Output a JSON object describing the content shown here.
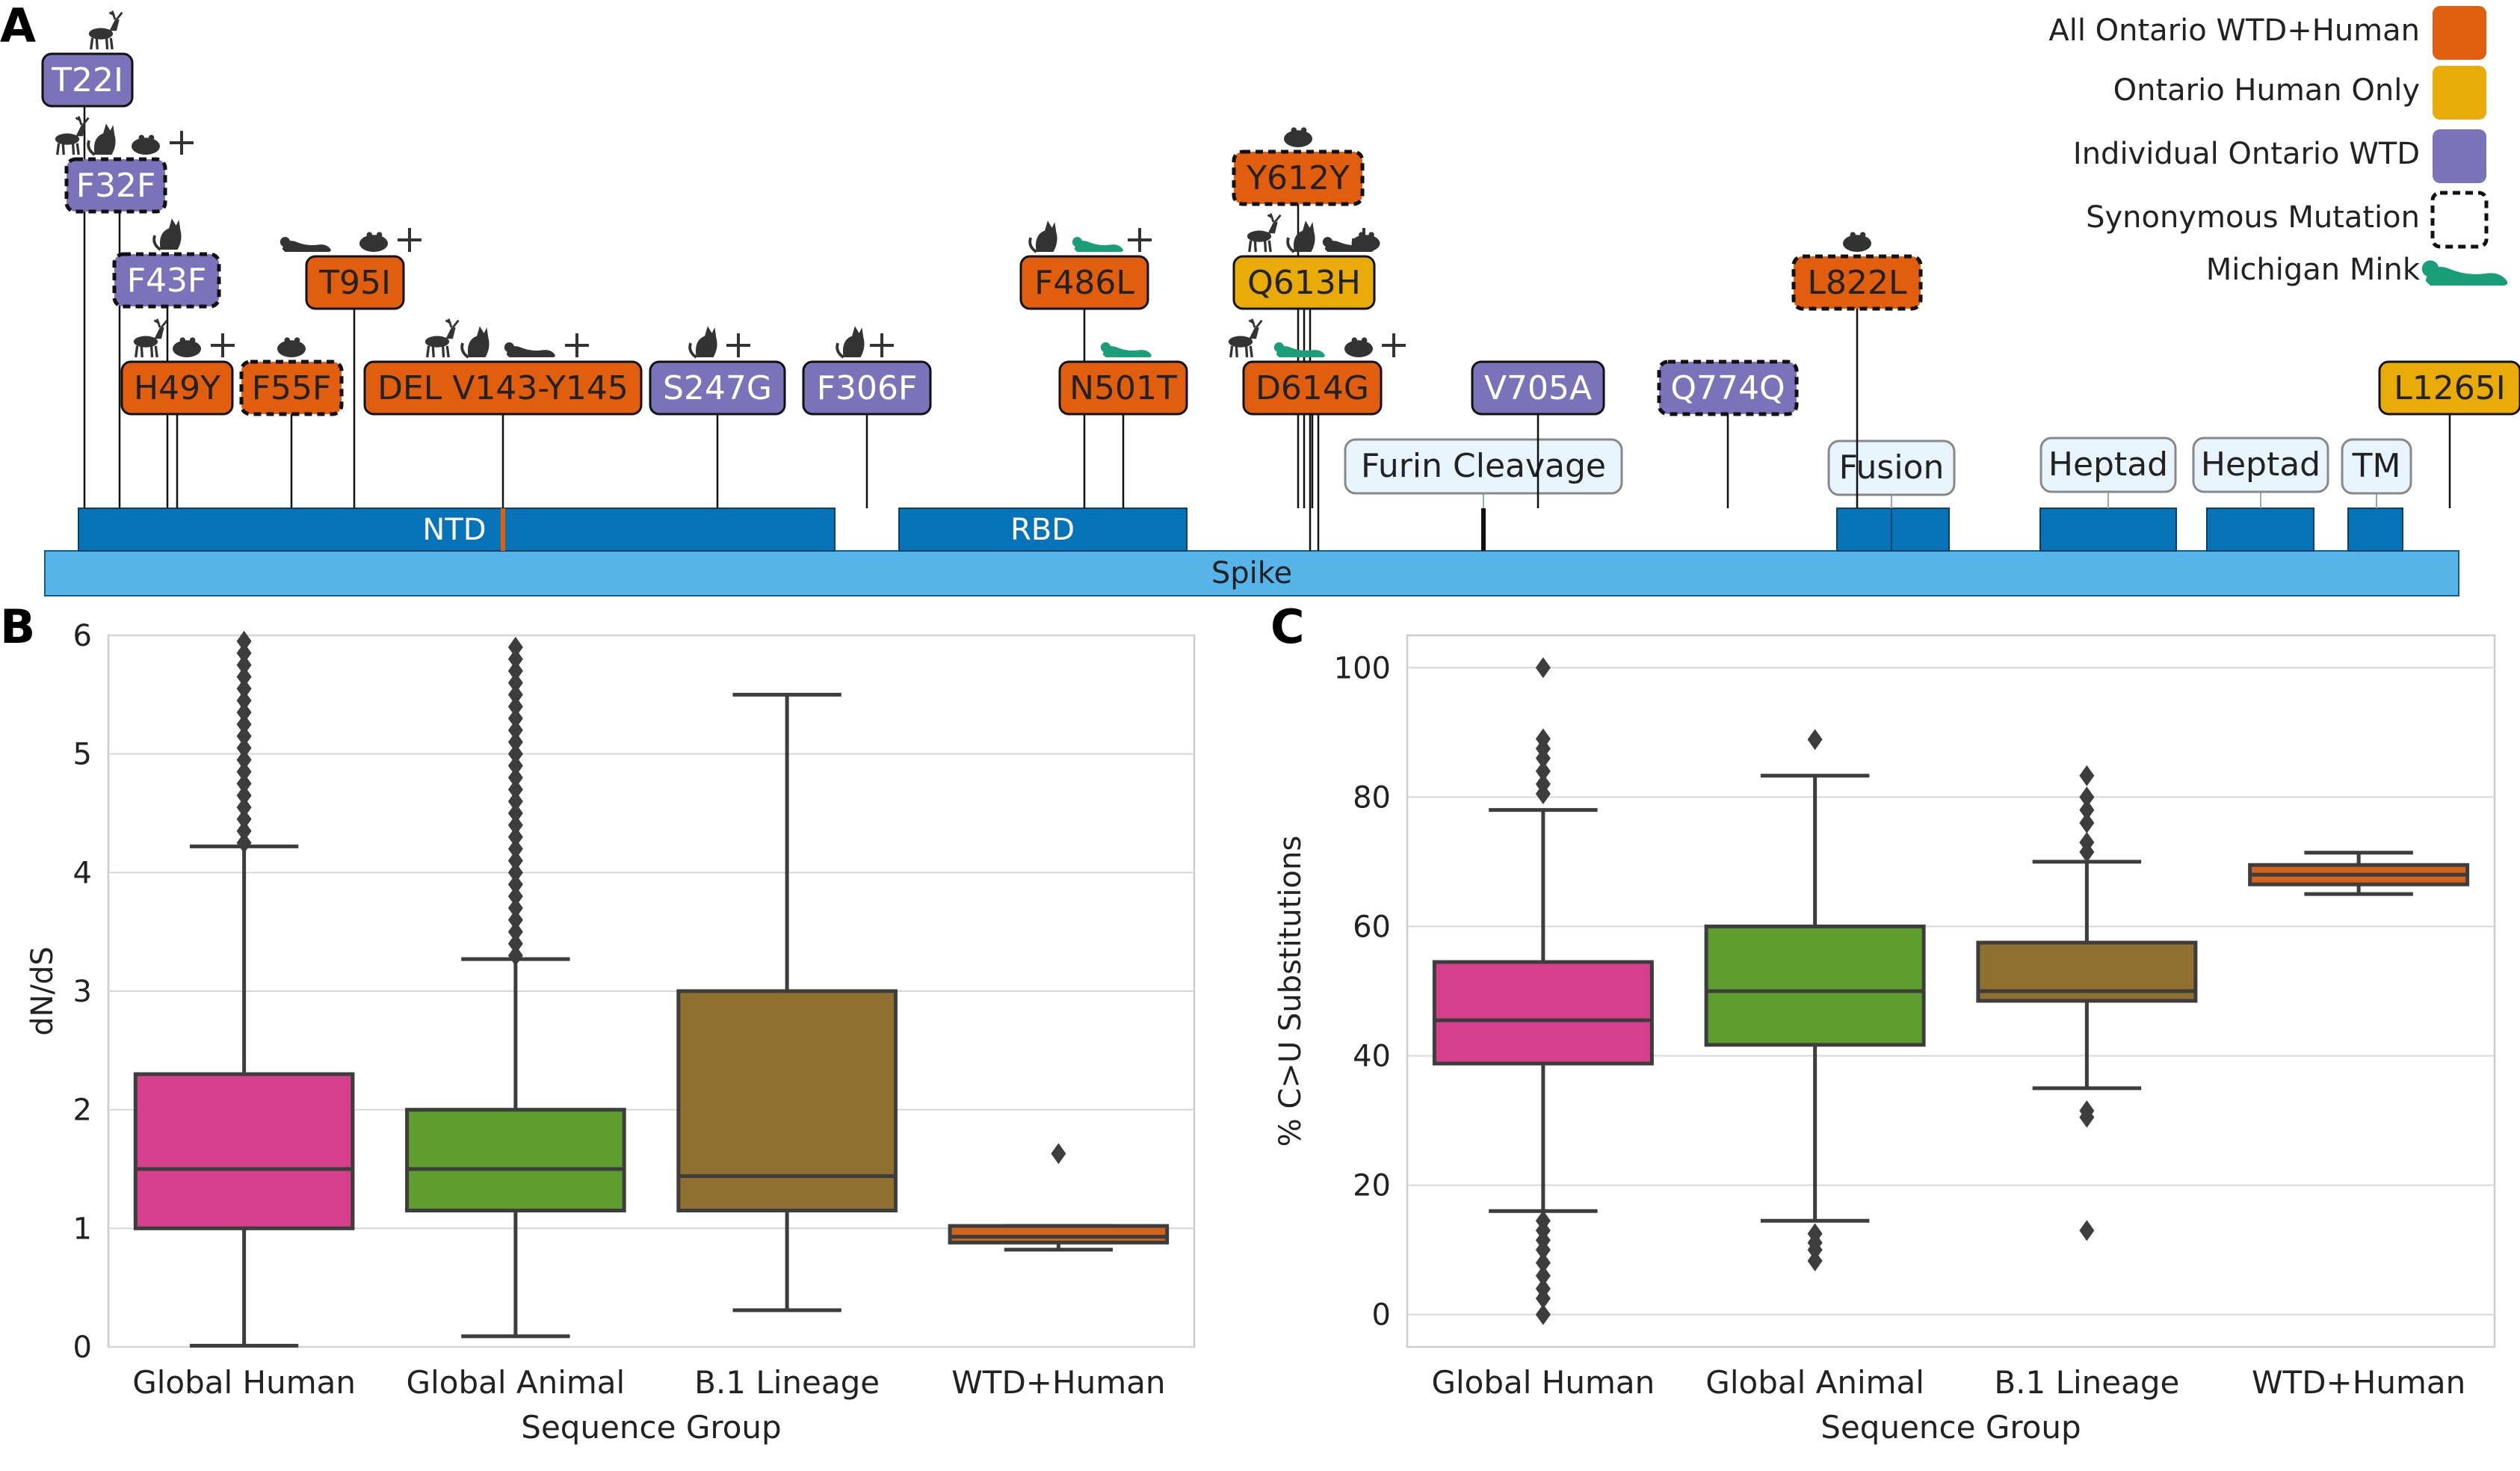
{
  "panel_letters": {
    "a": "A",
    "b": "B",
    "c": "C"
  },
  "colors": {
    "all_ontario": "#E05E0E",
    "human_only": "#E9AB08",
    "individual_wtd": "#7B73B9",
    "mink": "#1A9E77",
    "domain_dark": "#0773B8",
    "spike": "#56B4E9",
    "domain_label_bg": "#E8F4FB",
    "global_human": "#D63F8C",
    "global_animal": "#5E9E2E",
    "b1_lineage": "#90702E",
    "wtd_human": "#D1641A"
  },
  "legend": [
    {
      "label": "All Ontario WTD+Human",
      "kind": "all"
    },
    {
      "label": "Ontario Human Only",
      "kind": "human"
    },
    {
      "label": "Individual Ontario WTD",
      "kind": "wtd"
    },
    {
      "label": "Synonymous Mutation",
      "kind": "syn"
    },
    {
      "label": "Michigan Mink",
      "kind": "mink"
    }
  ],
  "spike": {
    "label": "Spike",
    "domains": [
      {
        "label": "NTD",
        "labeled": false
      },
      {
        "label": "RBD",
        "labeled": false
      },
      {
        "label": "Furin Cleavage",
        "labeled": true
      },
      {
        "label": "Fusion",
        "labeled": true
      },
      {
        "label": "Heptad",
        "labeled": true
      },
      {
        "label": "Heptad",
        "labeled": true
      },
      {
        "label": "TM",
        "labeled": true
      }
    ]
  },
  "mutations": [
    {
      "label": "T22I",
      "kind": "wtd",
      "syn": false,
      "hosts": [
        "deer"
      ],
      "plus": false
    },
    {
      "label": "F32F",
      "kind": "wtd",
      "syn": true,
      "hosts": [
        "deer",
        "cat",
        "hamster"
      ],
      "plus": true
    },
    {
      "label": "F43F",
      "kind": "wtd",
      "syn": true,
      "hosts": [
        "cat"
      ],
      "plus": false
    },
    {
      "label": "H49Y",
      "kind": "all",
      "syn": false,
      "hosts": [
        "deer",
        "hamster"
      ],
      "plus": true
    },
    {
      "label": "F55F",
      "kind": "all",
      "syn": true,
      "hosts": [
        "hamster"
      ],
      "plus": false
    },
    {
      "label": "T95I",
      "kind": "all",
      "syn": false,
      "hosts": [
        "mink",
        "hamster"
      ],
      "plus": true
    },
    {
      "label": "DEL V143-Y145",
      "kind": "all",
      "syn": false,
      "hosts": [
        "deer",
        "cat",
        "mink"
      ],
      "plus": true
    },
    {
      "label": "S247G",
      "kind": "wtd",
      "syn": false,
      "hosts": [
        "cat"
      ],
      "plus": true
    },
    {
      "label": "F306F",
      "kind": "wtd",
      "syn": false,
      "hosts": [
        "cat"
      ],
      "plus": true
    },
    {
      "label": "F486L",
      "kind": "all",
      "syn": false,
      "hosts": [
        "cat",
        "mink-g"
      ],
      "plus": true
    },
    {
      "label": "N501T",
      "kind": "all",
      "syn": false,
      "hosts": [
        "mink-g"
      ],
      "plus": false
    },
    {
      "label": "Y612Y",
      "kind": "all",
      "syn": true,
      "hosts": [
        "hamster"
      ],
      "plus": false
    },
    {
      "label": "Q613H",
      "kind": "human",
      "syn": false,
      "hosts": [
        "deer",
        "cat",
        "mink",
        "hamster"
      ],
      "plus": true
    },
    {
      "label": "D614G",
      "kind": "all",
      "syn": false,
      "hosts": [
        "deer",
        "mink-g",
        "hamster"
      ],
      "plus": true
    },
    {
      "label": "V705A",
      "kind": "wtd",
      "syn": false,
      "hosts": [],
      "plus": false
    },
    {
      "label": "Q774Q",
      "kind": "wtd",
      "syn": true,
      "hosts": [],
      "plus": false
    },
    {
      "label": "L822L",
      "kind": "all",
      "syn": true,
      "hosts": [
        "hamster"
      ],
      "plus": false
    },
    {
      "label": "L1265I",
      "kind": "human",
      "syn": false,
      "hosts": [],
      "plus": false
    }
  ],
  "chart_data": [
    {
      "type": "box",
      "panel": "B",
      "xlabel": "Sequence Group",
      "ylabel": "dN/dS",
      "ylim": [
        0,
        6
      ],
      "yticks": [
        "0",
        "1",
        "2",
        "3",
        "4",
        "5",
        "6"
      ],
      "grid": true,
      "categories": [
        "Global Human",
        "Global Animal",
        "B.1 Lineage",
        "WTD+Human"
      ],
      "boxes": [
        {
          "category": "Global Human",
          "min": 0.01,
          "q1": 1.0,
          "median": 1.5,
          "q3": 2.3,
          "max": 4.22,
          "outliers": [
            4.25,
            4.35,
            4.45,
            4.55,
            4.65,
            4.75,
            4.85,
            4.95,
            5.05,
            5.15,
            5.25,
            5.35,
            5.45,
            5.55,
            5.65,
            5.75,
            5.85,
            5.95
          ]
        },
        {
          "category": "Global Animal",
          "min": 0.09,
          "q1": 1.15,
          "median": 1.5,
          "q3": 2.0,
          "max": 3.27,
          "outliers": [
            3.3,
            3.4,
            3.5,
            3.6,
            3.7,
            3.8,
            3.9,
            4.0,
            4.1,
            4.2,
            4.3,
            4.4,
            4.5,
            4.6,
            4.7,
            4.8,
            4.9,
            5.0,
            5.1,
            5.2,
            5.3,
            5.4,
            5.5,
            5.6,
            5.7,
            5.8,
            5.9
          ]
        },
        {
          "category": "B.1 Lineage",
          "min": 0.31,
          "q1": 1.15,
          "median": 1.44,
          "q3": 3.0,
          "max": 5.5,
          "outliers": []
        },
        {
          "category": "WTD+Human",
          "min": 0.82,
          "q1": 0.88,
          "median": 0.93,
          "q3": 1.02,
          "max": 1.02,
          "outliers": [
            1.63
          ]
        }
      ]
    },
    {
      "type": "box",
      "panel": "C",
      "xlabel": "Sequence Group",
      "ylabel": "% C>U Substitutions",
      "ylim": [
        -5,
        105
      ],
      "yticks": [
        "0",
        "20",
        "40",
        "60",
        "80",
        "100"
      ],
      "grid": true,
      "categories": [
        "Global Human",
        "Global Animal",
        "B.1 Lineage",
        "WTD+Human"
      ],
      "boxes": [
        {
          "category": "Global Human",
          "min": 16,
          "q1": 38.8,
          "median": 45.5,
          "q3": 54.5,
          "max": 78,
          "outliers": [
            100,
            89,
            87.5,
            86,
            84,
            82,
            80.5,
            14.5,
            13,
            11.5,
            10,
            8,
            6,
            4,
            2.5,
            0
          ]
        },
        {
          "category": "Global Animal",
          "min": 14.5,
          "q1": 41.7,
          "median": 50,
          "q3": 60,
          "max": 83.3,
          "outliers": [
            88.9,
            12.5,
            11.1,
            10,
            8.3
          ]
        },
        {
          "category": "B.1 Lineage",
          "min": 35,
          "q1": 48.5,
          "median": 50,
          "q3": 57.5,
          "max": 70,
          "outliers": [
            83.3,
            80,
            78,
            76,
            73,
            71.5,
            31.5,
            30.5,
            13
          ]
        },
        {
          "category": "WTD+Human",
          "min": 65,
          "q1": 66.5,
          "median": 68,
          "q3": 69.5,
          "max": 71.4,
          "outliers": []
        }
      ]
    }
  ]
}
